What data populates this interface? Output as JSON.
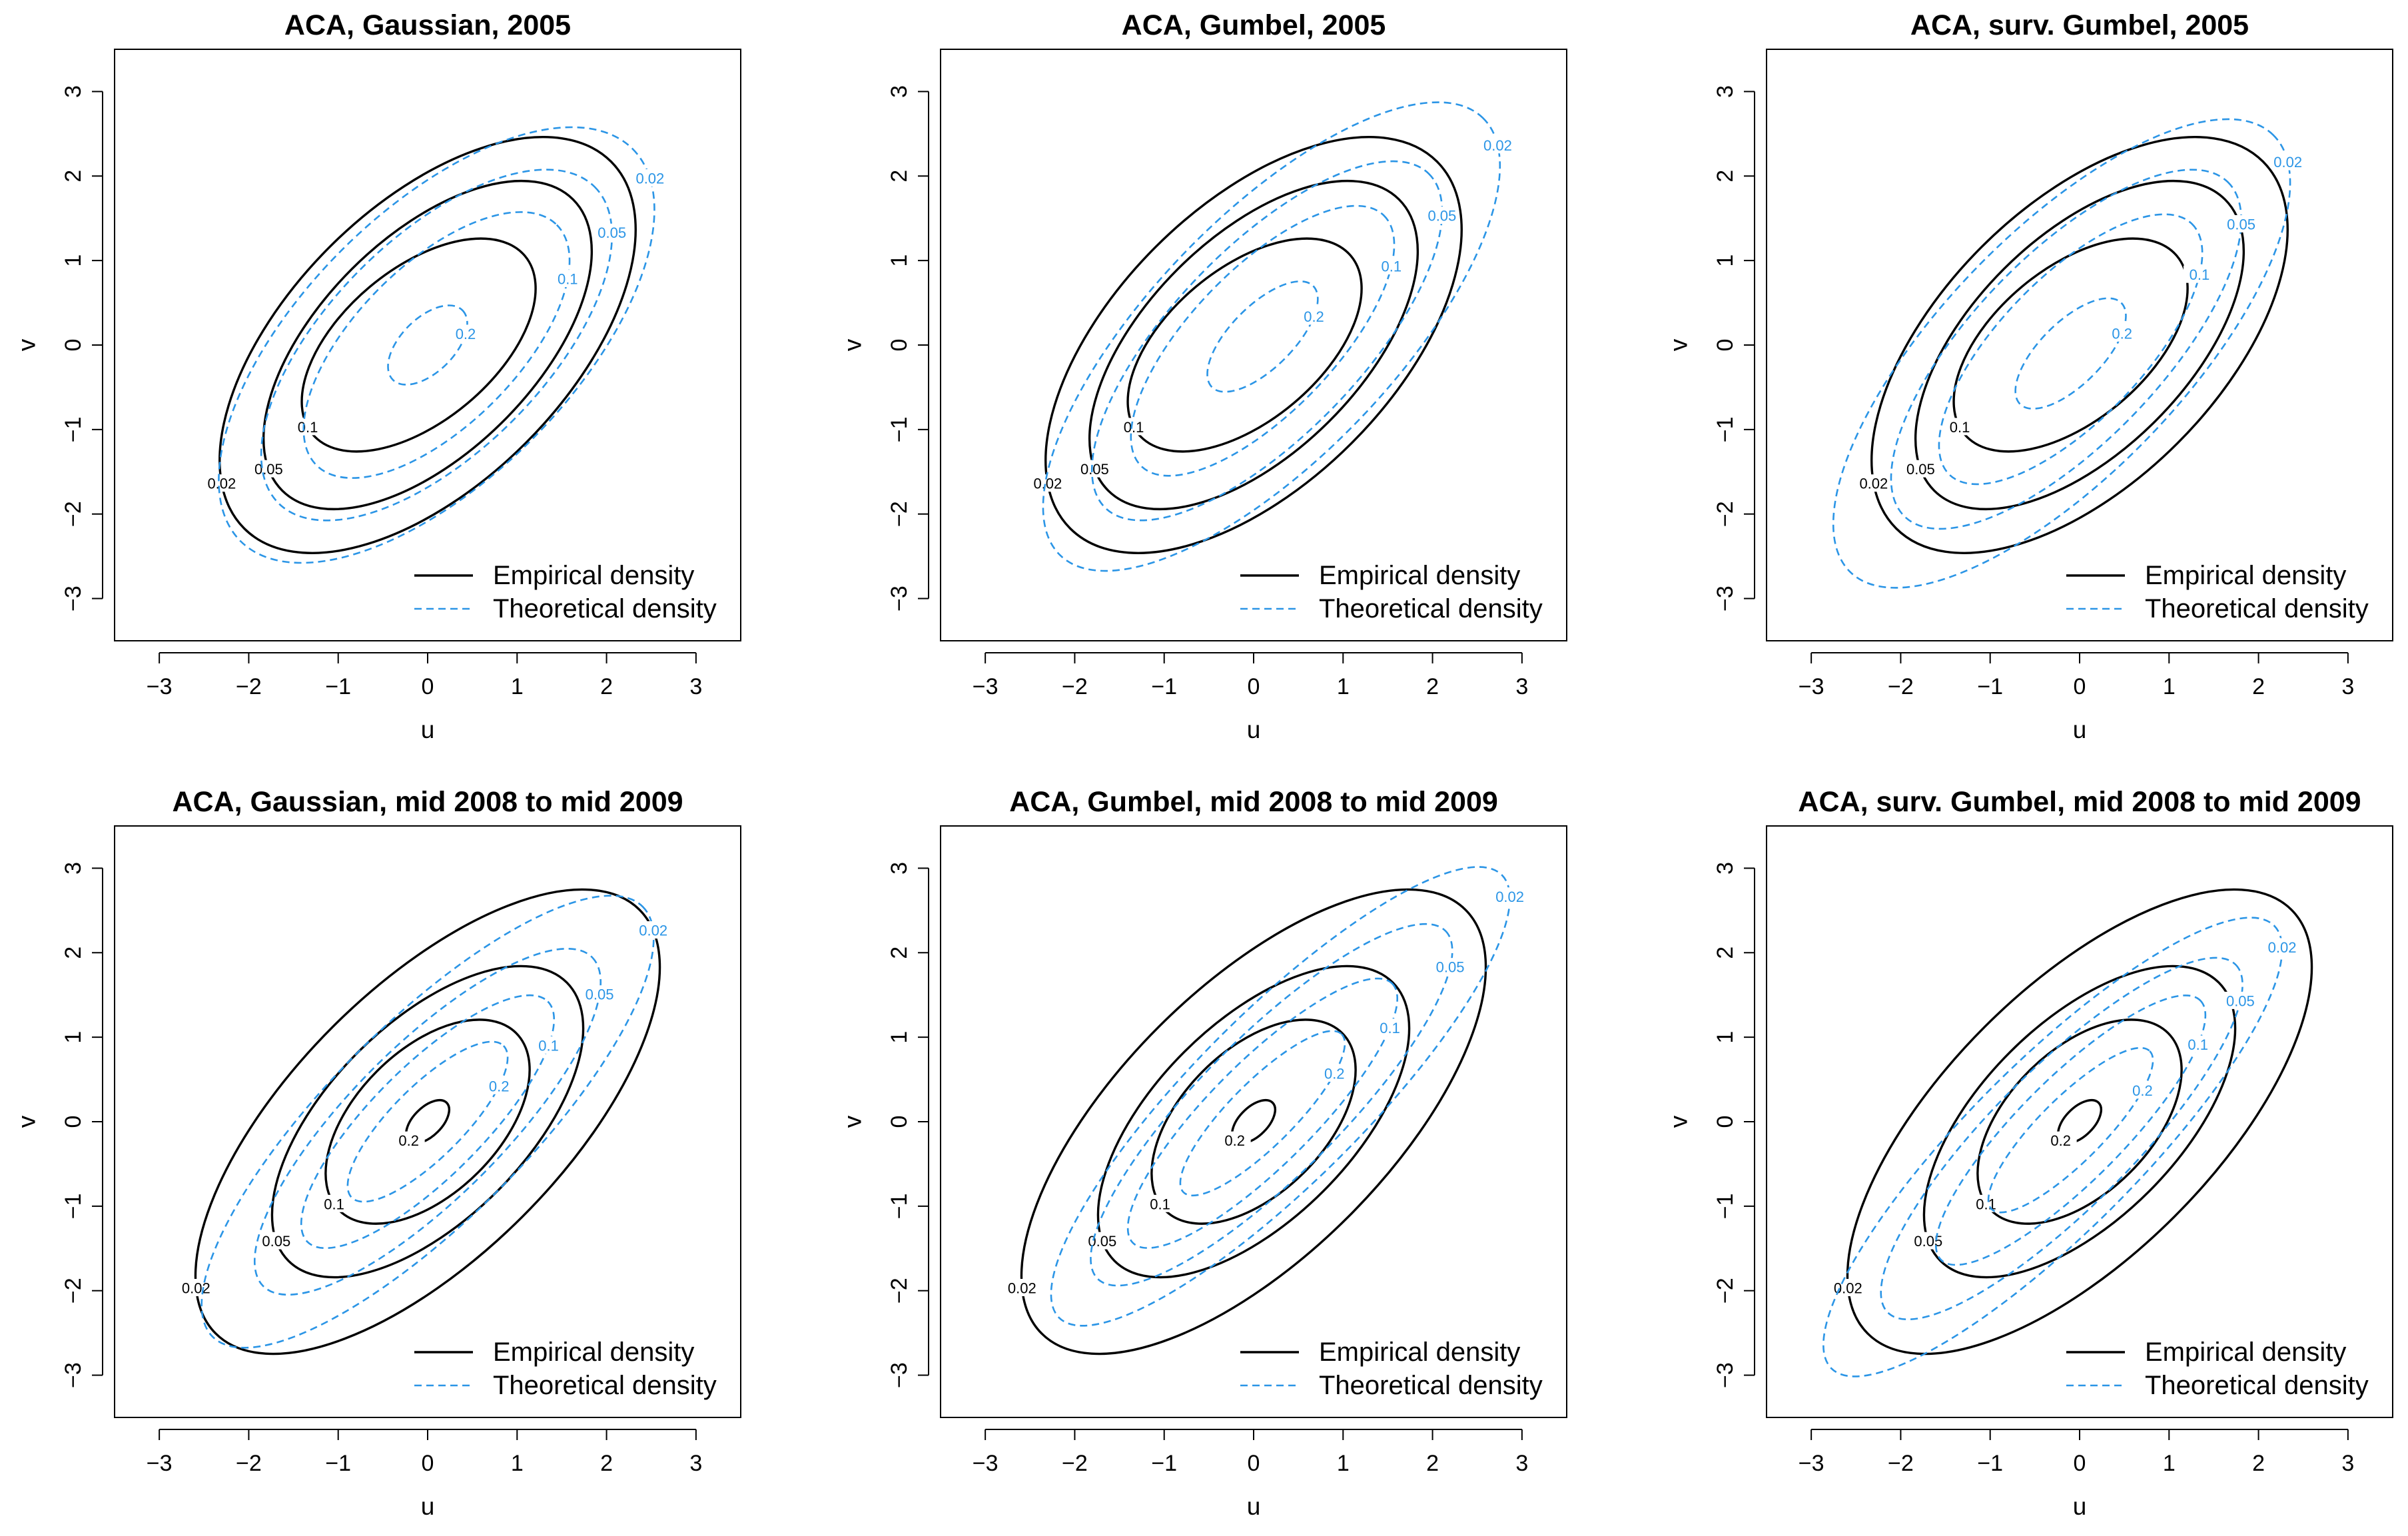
{
  "colors": {
    "empirical": "#000000",
    "theoretical": "#2b95e6"
  },
  "legend": {
    "empirical": "Empirical density",
    "theoretical": "Theoretical density",
    "placement": "bottom-right"
  },
  "chart_data": [
    {
      "type": "contour",
      "title": "ACA, Gaussian, 2005",
      "xlabel": "u",
      "ylabel": "v",
      "xlim": [
        -3.5,
        3.5
      ],
      "ylim": [
        -3.5,
        3.5
      ],
      "xticks": [
        -3,
        -2,
        -1,
        0,
        1,
        2,
        3
      ],
      "yticks": [
        -3,
        -2,
        -1,
        0,
        1,
        2,
        3
      ],
      "levels": [
        "0.02",
        "0.05",
        "0.1",
        "0.2"
      ],
      "empirical": [
        {
          "level": "0.02",
          "cx": 0.0,
          "cy": 0.0,
          "a": 2.9,
          "b": 1.55,
          "angle": 45
        },
        {
          "level": "0.05",
          "cx": 0.0,
          "cy": 0.0,
          "a": 2.3,
          "b": 1.2,
          "angle": 45
        },
        {
          "level": "0.1",
          "cx": -0.1,
          "cy": 0.0,
          "a": 1.55,
          "b": 0.85,
          "angle": 40
        }
      ],
      "theoretical": [
        {
          "level": "0.02",
          "cx": 0.1,
          "cy": 0.0,
          "a": 3.1,
          "b": 1.5,
          "angle": 45
        },
        {
          "level": "0.05",
          "cx": 0.1,
          "cy": 0.0,
          "a": 2.5,
          "b": 1.2,
          "angle": 45
        },
        {
          "level": "0.1",
          "cx": 0.1,
          "cy": 0.0,
          "a": 1.9,
          "b": 0.9,
          "angle": 45
        },
        {
          "level": "0.2",
          "cx": 0.0,
          "cy": 0.0,
          "a": 0.55,
          "b": 0.3,
          "angle": 45
        }
      ]
    },
    {
      "type": "contour",
      "title": "ACA, Gumbel, 2005",
      "xlabel": "u",
      "ylabel": "v",
      "xlim": [
        -3.5,
        3.5
      ],
      "ylim": [
        -3.5,
        3.5
      ],
      "xticks": [
        -3,
        -2,
        -1,
        0,
        1,
        2,
        3
      ],
      "yticks": [
        -3,
        -2,
        -1,
        0,
        1,
        2,
        3
      ],
      "levels": [
        "0.02",
        "0.05",
        "0.1",
        "0.2"
      ],
      "empirical": [
        {
          "level": "0.02",
          "cx": 0.0,
          "cy": 0.0,
          "a": 2.9,
          "b": 1.55,
          "angle": 45
        },
        {
          "level": "0.05",
          "cx": 0.0,
          "cy": 0.0,
          "a": 2.3,
          "b": 1.2,
          "angle": 45
        },
        {
          "level": "0.1",
          "cx": -0.1,
          "cy": 0.0,
          "a": 1.55,
          "b": 0.85,
          "angle": 40
        }
      ],
      "theoretical": [
        {
          "level": "0.02",
          "cx": 0.2,
          "cy": 0.1,
          "a": 3.4,
          "b": 1.35,
          "angle": 46
        },
        {
          "level": "0.05",
          "cx": 0.15,
          "cy": 0.05,
          "a": 2.6,
          "b": 1.05,
          "angle": 46
        },
        {
          "level": "0.1",
          "cx": 0.1,
          "cy": 0.05,
          "a": 1.95,
          "b": 0.8,
          "angle": 46
        },
        {
          "level": "0.2",
          "cx": 0.1,
          "cy": 0.1,
          "a": 0.8,
          "b": 0.35,
          "angle": 45
        }
      ]
    },
    {
      "type": "contour",
      "title": "ACA, surv. Gumbel, 2005",
      "xlabel": "u",
      "ylabel": "v",
      "xlim": [
        -3.5,
        3.5
      ],
      "ylim": [
        -3.5,
        3.5
      ],
      "xticks": [
        -3,
        -2,
        -1,
        0,
        1,
        2,
        3
      ],
      "yticks": [
        -3,
        -2,
        -1,
        0,
        1,
        2,
        3
      ],
      "levels": [
        "0.02",
        "0.05",
        "0.1",
        "0.2"
      ],
      "empirical": [
        {
          "level": "0.02",
          "cx": 0.0,
          "cy": 0.0,
          "a": 2.9,
          "b": 1.55,
          "angle": 45
        },
        {
          "level": "0.05",
          "cx": 0.0,
          "cy": 0.0,
          "a": 2.3,
          "b": 1.2,
          "angle": 45
        },
        {
          "level": "0.1",
          "cx": -0.1,
          "cy": 0.0,
          "a": 1.55,
          "b": 0.85,
          "angle": 40
        }
      ],
      "theoretical": [
        {
          "level": "0.02",
          "cx": -0.2,
          "cy": -0.1,
          "a": 3.4,
          "b": 1.35,
          "angle": 46
        },
        {
          "level": "0.05",
          "cx": -0.15,
          "cy": -0.05,
          "a": 2.6,
          "b": 1.05,
          "angle": 46
        },
        {
          "level": "0.1",
          "cx": -0.1,
          "cy": -0.05,
          "a": 1.95,
          "b": 0.8,
          "angle": 46
        },
        {
          "level": "0.2",
          "cx": -0.1,
          "cy": -0.1,
          "a": 0.8,
          "b": 0.35,
          "angle": 45
        }
      ]
    },
    {
      "type": "contour",
      "title": "ACA, Gaussian, mid 2008 to mid 2009",
      "xlabel": "u",
      "ylabel": "v",
      "xlim": [
        -3.5,
        3.5
      ],
      "ylim": [
        -3.5,
        3.5
      ],
      "xticks": [
        -3,
        -2,
        -1,
        0,
        1,
        2,
        3
      ],
      "yticks": [
        -3,
        -2,
        -1,
        0,
        1,
        2,
        3
      ],
      "levels": [
        "0.02",
        "0.05",
        "0.1",
        "0.2"
      ],
      "empirical": [
        {
          "level": "0.02",
          "cx": 0.0,
          "cy": 0.0,
          "a": 3.35,
          "b": 1.5,
          "angle": 45
        },
        {
          "level": "0.05",
          "cx": 0.0,
          "cy": 0.0,
          "a": 2.2,
          "b": 1.1,
          "angle": 45
        },
        {
          "level": "0.1",
          "cx": 0.0,
          "cy": 0.0,
          "a": 1.4,
          "b": 0.8,
          "angle": 45
        },
        {
          "level": "0.2",
          "cx": 0.0,
          "cy": 0.0,
          "a": 0.3,
          "b": 0.16,
          "angle": 45
        }
      ],
      "theoretical": [
        {
          "level": "0.02",
          "cx": 0.0,
          "cy": 0.0,
          "a": 3.4,
          "b": 1.1,
          "angle": 45
        },
        {
          "level": "0.05",
          "cx": 0.0,
          "cy": 0.0,
          "a": 2.6,
          "b": 0.85,
          "angle": 45
        },
        {
          "level": "0.1",
          "cx": 0.0,
          "cy": 0.0,
          "a": 1.9,
          "b": 0.62,
          "angle": 45
        },
        {
          "level": "0.2",
          "cx": 0.0,
          "cy": 0.0,
          "a": 1.2,
          "b": 0.4,
          "angle": 45
        }
      ]
    },
    {
      "type": "contour",
      "title": "ACA, Gumbel, mid 2008 to mid 2009",
      "xlabel": "u",
      "ylabel": "v",
      "xlim": [
        -3.5,
        3.5
      ],
      "ylim": [
        -3.5,
        3.5
      ],
      "xticks": [
        -3,
        -2,
        -1,
        0,
        1,
        2,
        3
      ],
      "yticks": [
        -3,
        -2,
        -1,
        0,
        1,
        2,
        3
      ],
      "levels": [
        "0.02",
        "0.05",
        "0.1",
        "0.2"
      ],
      "empirical": [
        {
          "level": "0.02",
          "cx": 0.0,
          "cy": 0.0,
          "a": 3.35,
          "b": 1.5,
          "angle": 45
        },
        {
          "level": "0.05",
          "cx": 0.0,
          "cy": 0.0,
          "a": 2.2,
          "b": 1.1,
          "angle": 45
        },
        {
          "level": "0.1",
          "cx": 0.0,
          "cy": 0.0,
          "a": 1.4,
          "b": 0.8,
          "angle": 45
        },
        {
          "level": "0.2",
          "cx": 0.0,
          "cy": 0.0,
          "a": 0.3,
          "b": 0.16,
          "angle": 45
        }
      ],
      "theoretical": [
        {
          "level": "0.02",
          "cx": 0.3,
          "cy": 0.3,
          "a": 3.5,
          "b": 0.95,
          "angle": 45
        },
        {
          "level": "0.05",
          "cx": 0.2,
          "cy": 0.2,
          "a": 2.75,
          "b": 0.78,
          "angle": 45
        },
        {
          "level": "0.1",
          "cx": 0.1,
          "cy": 0.1,
          "a": 2.05,
          "b": 0.58,
          "angle": 45
        },
        {
          "level": "0.2",
          "cx": 0.1,
          "cy": 0.1,
          "a": 1.25,
          "b": 0.36,
          "angle": 45
        }
      ]
    },
    {
      "type": "contour",
      "title": "ACA, surv. Gumbel, mid 2008 to mid 2009",
      "xlabel": "u",
      "ylabel": "v",
      "xlim": [
        -3.5,
        3.5
      ],
      "ylim": [
        -3.5,
        3.5
      ],
      "xticks": [
        -3,
        -2,
        -1,
        0,
        1,
        2,
        3
      ],
      "yticks": [
        -3,
        -2,
        -1,
        0,
        1,
        2,
        3
      ],
      "levels": [
        "0.02",
        "0.05",
        "0.1",
        "0.2"
      ],
      "empirical": [
        {
          "level": "0.02",
          "cx": 0.0,
          "cy": 0.0,
          "a": 3.35,
          "b": 1.5,
          "angle": 45
        },
        {
          "level": "0.05",
          "cx": 0.0,
          "cy": 0.0,
          "a": 2.2,
          "b": 1.1,
          "angle": 45
        },
        {
          "level": "0.1",
          "cx": 0.0,
          "cy": 0.0,
          "a": 1.4,
          "b": 0.8,
          "angle": 45
        },
        {
          "level": "0.2",
          "cx": 0.0,
          "cy": 0.0,
          "a": 0.3,
          "b": 0.16,
          "angle": 45
        }
      ],
      "theoretical": [
        {
          "level": "0.02",
          "cx": -0.3,
          "cy": -0.3,
          "a": 3.5,
          "b": 0.95,
          "angle": 45
        },
        {
          "level": "0.05",
          "cx": -0.2,
          "cy": -0.2,
          "a": 2.75,
          "b": 0.78,
          "angle": 45
        },
        {
          "level": "0.1",
          "cx": -0.1,
          "cy": -0.1,
          "a": 2.05,
          "b": 0.58,
          "angle": 45
        },
        {
          "level": "0.2",
          "cx": -0.1,
          "cy": -0.1,
          "a": 1.25,
          "b": 0.36,
          "angle": 45
        }
      ]
    }
  ]
}
